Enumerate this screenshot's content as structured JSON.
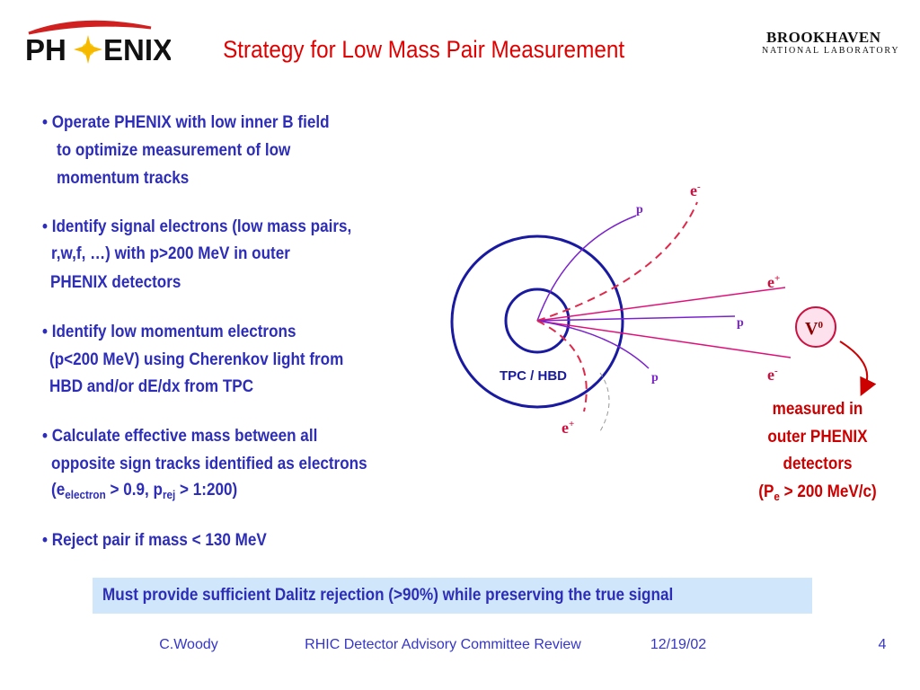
{
  "header": {
    "logo_left": [
      "PH",
      "ENIX"
    ],
    "title": "Strategy for Low Mass Pair Measurement",
    "logo_right": {
      "name": "BROOKHAVEN",
      "subtitle": "NATIONAL LABORATORY"
    }
  },
  "bullets": [
    [
      [
        "• Operate PHENIX with low inner B field"
      ],
      [
        "to  optimize measurement of low"
      ],
      [
        "momentum  tracks"
      ]
    ],
    [
      [
        "• Identify signal electrons (low mass pairs,"
      ],
      [
        "r,w,f, …) with p>200 MeV in outer"
      ],
      [
        "PHENIX detectors"
      ]
    ],
    [
      [
        "• Identify low momentum electrons"
      ],
      [
        "(p<200 MeV)  using Cherenkov light from"
      ],
      [
        "HBD and/or dE/dx from TPC"
      ]
    ],
    [
      [
        "• Calculate effective mass between all"
      ],
      [
        "opposite sign tracks identified as electrons"
      ],
      [
        "(e",
        {
          "sub": "electron"
        },
        " > 0.9, p",
        {
          "sub": "rej"
        },
        " > 1:200)"
      ]
    ],
    [
      [
        "• Reject pair if mass < 130 MeV"
      ]
    ]
  ],
  "diagram": {
    "detector": "TPC / HBD",
    "tracks": [
      [
        "e",
        {
          "sup": "-"
        }
      ],
      [
        "p"
      ],
      [
        "e",
        {
          "sup": "+"
        }
      ],
      [
        "p"
      ],
      [
        "e",
        {
          "sup": "-"
        }
      ],
      [
        "p"
      ],
      [
        "e",
        {
          "sup": "+"
        }
      ]
    ],
    "v0": [
      "V",
      {
        "sup": "0"
      }
    ],
    "note": [
      [
        "measured in"
      ],
      [
        "outer PHENIX"
      ],
      [
        "detectors"
      ],
      [
        "(P",
        {
          "sub": "e"
        },
        " > 200 MeV/c)"
      ]
    ]
  },
  "callout": "Must provide sufficient Dalitz rejection (>90%) while preserving the true signal",
  "footer": {
    "author": "C.Woody",
    "event": "RHIC Detector Advisory Committee Review",
    "date": "12/19/02",
    "page": "4"
  }
}
